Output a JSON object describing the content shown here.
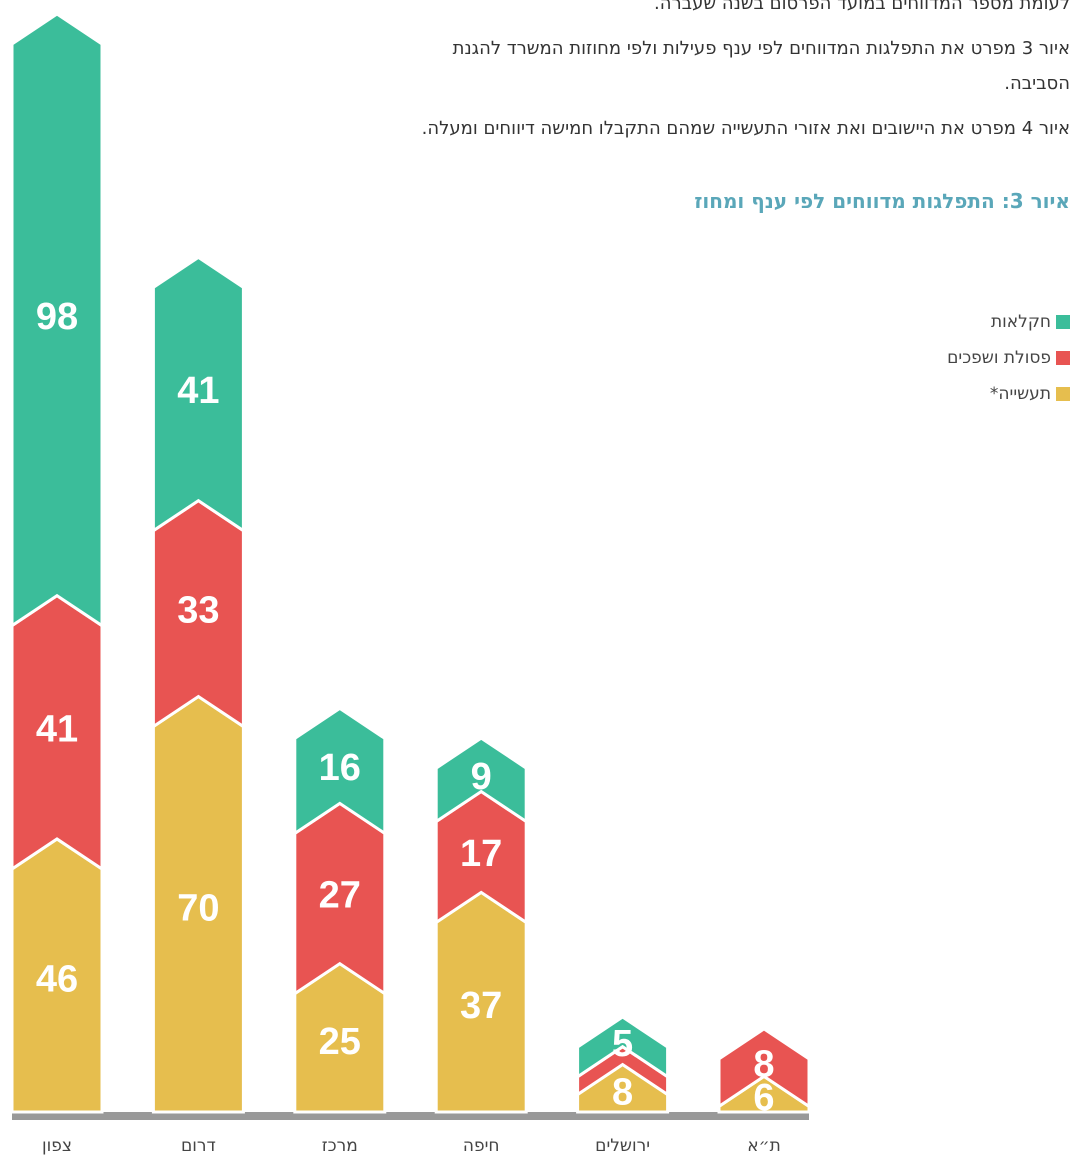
{
  "text": {
    "paragraphs": [
      "לעומת מספר המדווחים במועד הפרסום בשנה שעברה.",
      "איור 3 מפרט את התפלגות המדווחים לפי ענף פעילות ולפי מחוזות המשרד להגנת הסביבה.",
      "איור 4 מפרט את היישובים ואת אזורי התעשייה שמהם התקבלו חמישה דיווחים ומעלה."
    ]
  },
  "chart_data": {
    "type": "stacked-arrow-bar",
    "title": "איור 3: התפלגות מדווחים לפי ענף ומחוז",
    "categories": [
      "צפון",
      "דרום",
      "מרכז",
      "חיפה",
      "ירושלים",
      "ת״א"
    ],
    "series": [
      {
        "name": "תעשייה*",
        "color": "#e6be4e",
        "values": [
          46,
          70,
          25,
          37,
          8,
          6
        ]
      },
      {
        "name": "פסולת ושפכים",
        "color": "#e85452",
        "values": [
          41,
          33,
          27,
          17,
          3,
          8
        ]
      },
      {
        "name": "חקלאות",
        "color": "#3bbd9a",
        "values": [
          98,
          41,
          16,
          9,
          5,
          0
        ]
      }
    ]
  }
}
